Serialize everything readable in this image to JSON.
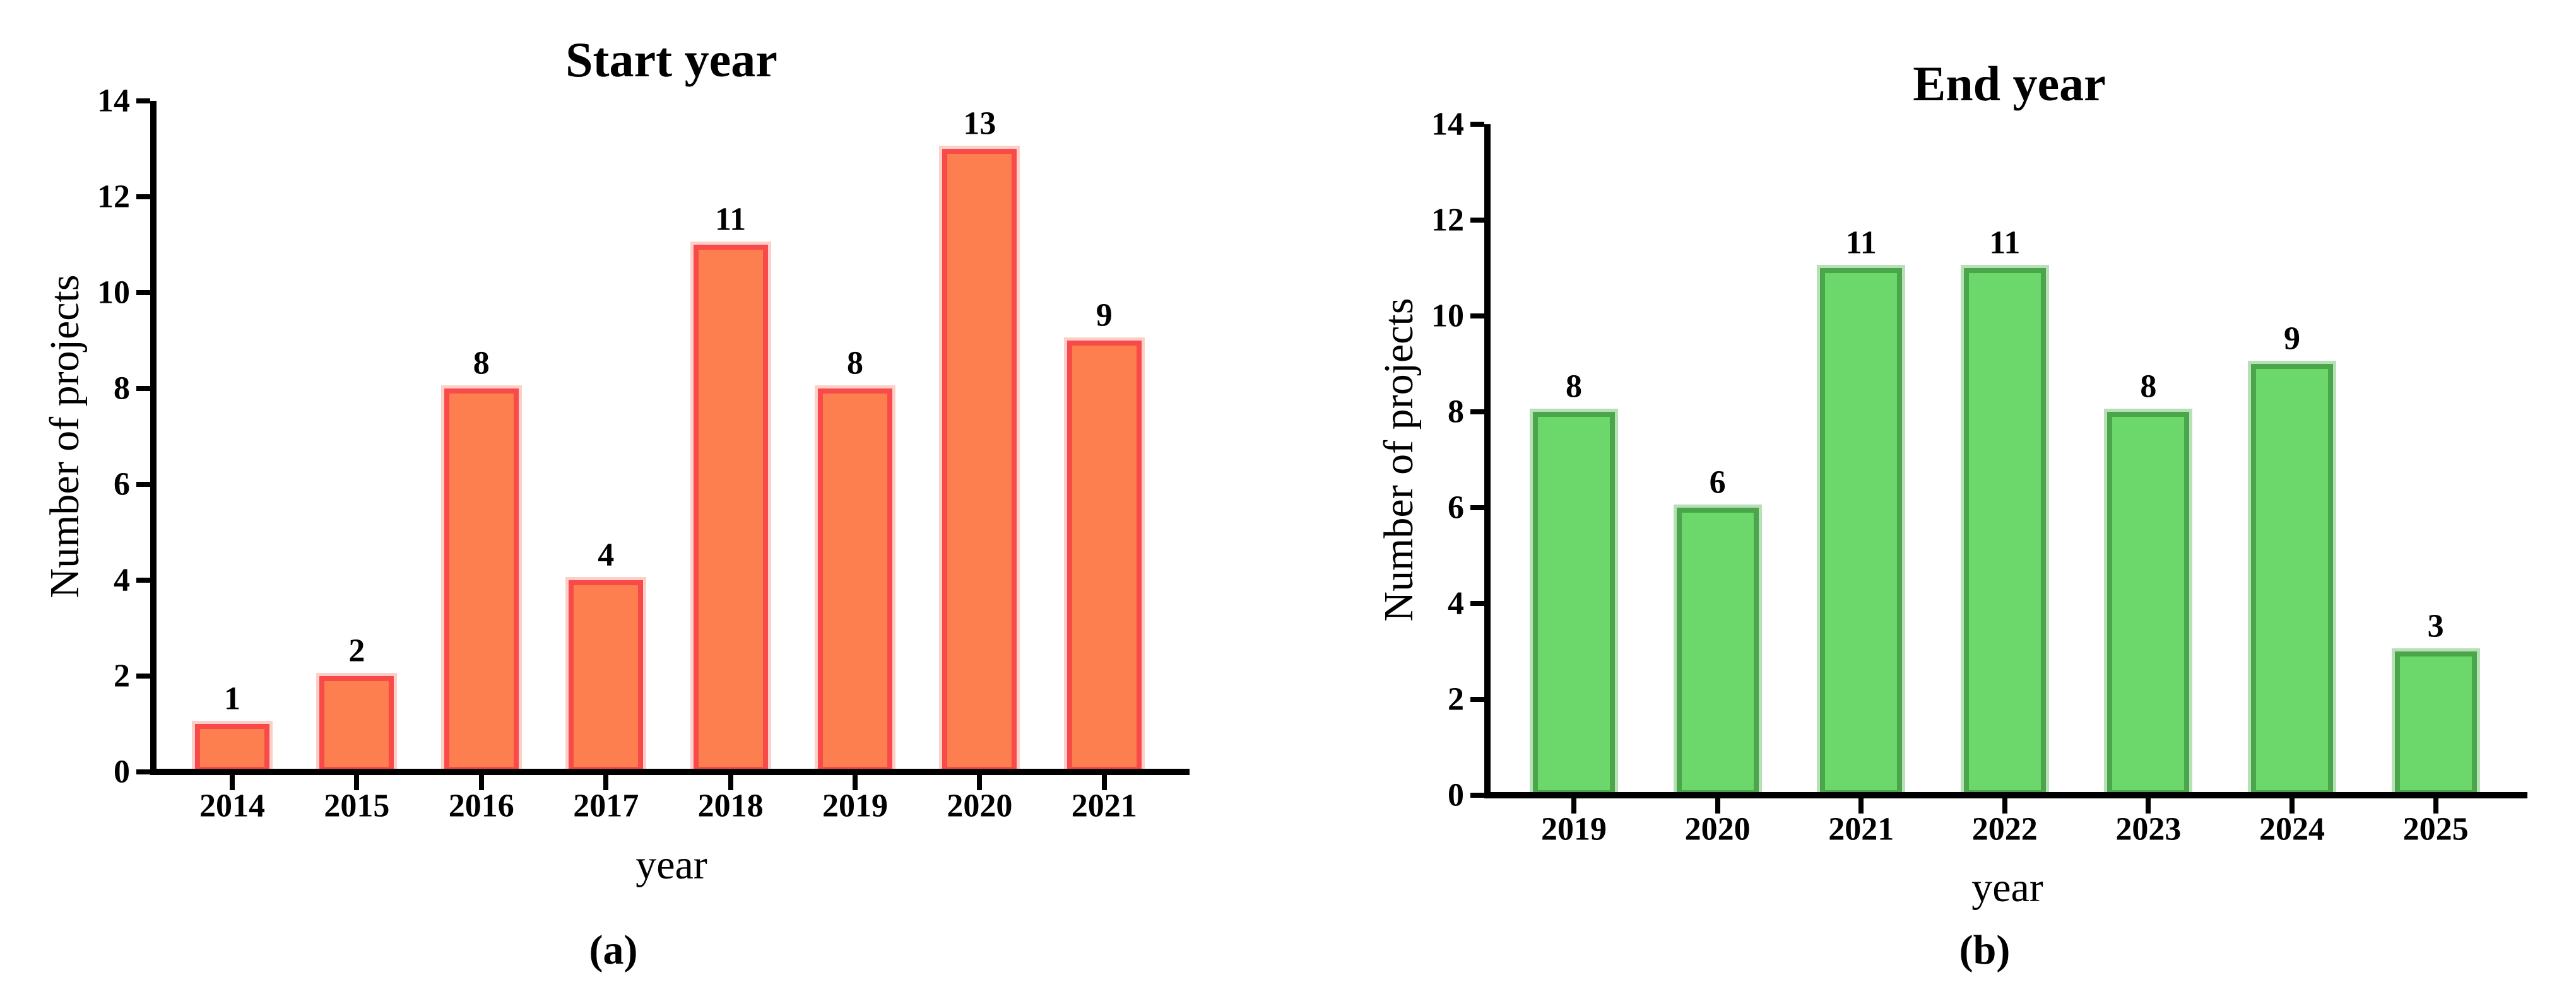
{
  "page": {
    "background": "#ffffff",
    "text_color": "#000000"
  },
  "chart_data": [
    {
      "type": "bar",
      "title": "Start year",
      "xlabel": "year",
      "ylabel": "Number of projects",
      "caption": "(a)",
      "categories": [
        "2014",
        "2015",
        "2016",
        "2017",
        "2018",
        "2019",
        "2020",
        "2021"
      ],
      "values": [
        1,
        2,
        8,
        4,
        11,
        8,
        13,
        9
      ],
      "bar_value_labels": [
        "1",
        "2",
        "8",
        "4",
        "11",
        "8",
        "13",
        "9"
      ],
      "ylim": [
        0,
        14
      ],
      "yticks": [
        0,
        2,
        4,
        6,
        8,
        10,
        12,
        14
      ],
      "grid": "off",
      "legend": "none",
      "bar_fill": "#fd7e4e",
      "bar_edge": "#f94a4a",
      "bar_halo": "#fcd0c9",
      "axis_color": "#000000"
    },
    {
      "type": "bar",
      "title": "End year",
      "xlabel": "year",
      "ylabel": "Number of projects",
      "caption": "(b)",
      "categories": [
        "2019",
        "2020",
        "2021",
        "2022",
        "2023",
        "2024",
        "2025"
      ],
      "values": [
        8,
        6,
        11,
        11,
        8,
        9,
        3
      ],
      "bar_value_labels": [
        "8",
        "6",
        "11",
        "11",
        "8",
        "9",
        "3"
      ],
      "ylim": [
        0,
        14
      ],
      "yticks": [
        0,
        2,
        4,
        6,
        8,
        10,
        12,
        14
      ],
      "grid": "off",
      "legend": "none",
      "bar_fill": "#6cd86c",
      "bar_edge": "#4ba54b",
      "bar_halo": "#b7e0b7",
      "axis_color": "#000000"
    }
  ]
}
